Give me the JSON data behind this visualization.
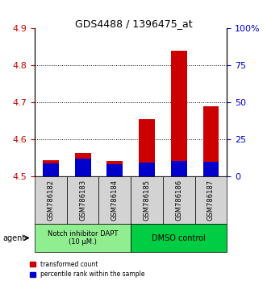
{
  "title": "GDS4488 / 1396475_at",
  "categories": [
    "GSM786182",
    "GSM786183",
    "GSM786184",
    "GSM786185",
    "GSM786186",
    "GSM786187"
  ],
  "red_values": [
    4.545,
    4.565,
    4.543,
    4.655,
    4.84,
    4.69
  ],
  "blue_values": [
    4.535,
    4.548,
    4.533,
    4.538,
    4.542,
    4.54
  ],
  "ylim_left": [
    4.5,
    4.9
  ],
  "ylim_right": [
    0,
    100
  ],
  "yticks_left": [
    4.5,
    4.6,
    4.7,
    4.8,
    4.9
  ],
  "yticks_right": [
    0,
    25,
    50,
    75,
    100
  ],
  "ytick_labels_right": [
    "0",
    "25",
    "50",
    "75",
    "100%"
  ],
  "group1_label": "Notch inhibitor DAPT\n(10 μM.)",
  "group2_label": "DMSO control",
  "group1_color": "#90EE90",
  "group2_color": "#00CC44",
  "bar_width": 0.5,
  "red_color": "#CC0000",
  "blue_color": "#0000CC",
  "legend_red": "transformed count",
  "legend_blue": "percentile rank within the sample",
  "agent_label": "agent",
  "background_plot": "#FFFFFF",
  "grid_color": "#000000",
  "ylabel_left_color": "#CC0000",
  "ylabel_right_color": "#0000CC"
}
